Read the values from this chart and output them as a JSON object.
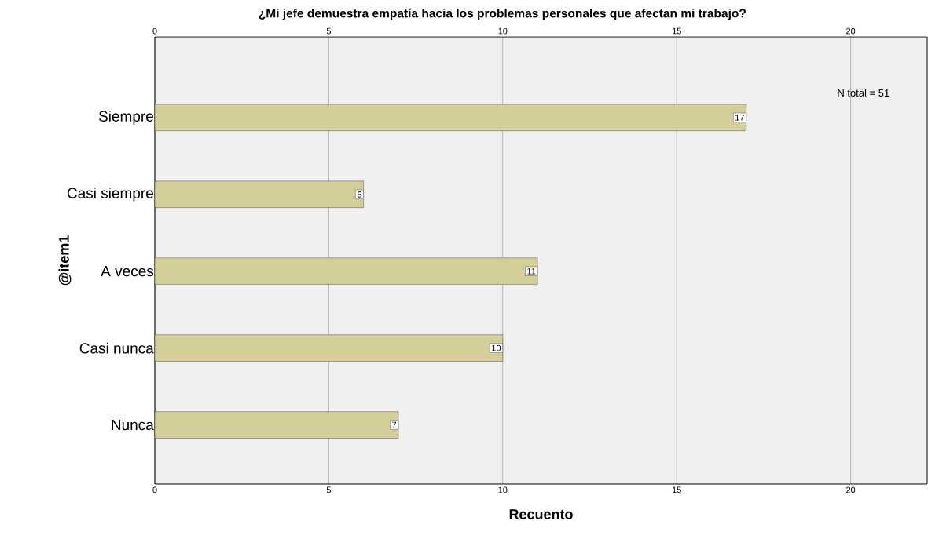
{
  "chart_data": {
    "type": "bar",
    "orientation": "horizontal",
    "title": "¿Mi jefe demuestra empatía hacia los problemas personales que afectan mi trabajo?",
    "xlabel": "Recuento",
    "ylabel": "@item1",
    "categories": [
      "Siempre",
      "Casi siempre",
      "A veces",
      "Casi nunca",
      "Nunca"
    ],
    "values": [
      17,
      6,
      11,
      10,
      7
    ],
    "color": "#d4cf9a",
    "xlim": [
      0,
      22.2
    ],
    "xticks": [
      0,
      5,
      10,
      15,
      20
    ],
    "x2lim": [
      0,
      22.2
    ],
    "x2ticks": [
      0,
      5,
      10,
      15,
      20
    ],
    "grid": "x",
    "data_labels": true,
    "annotations": [
      "N total =  51"
    ]
  }
}
